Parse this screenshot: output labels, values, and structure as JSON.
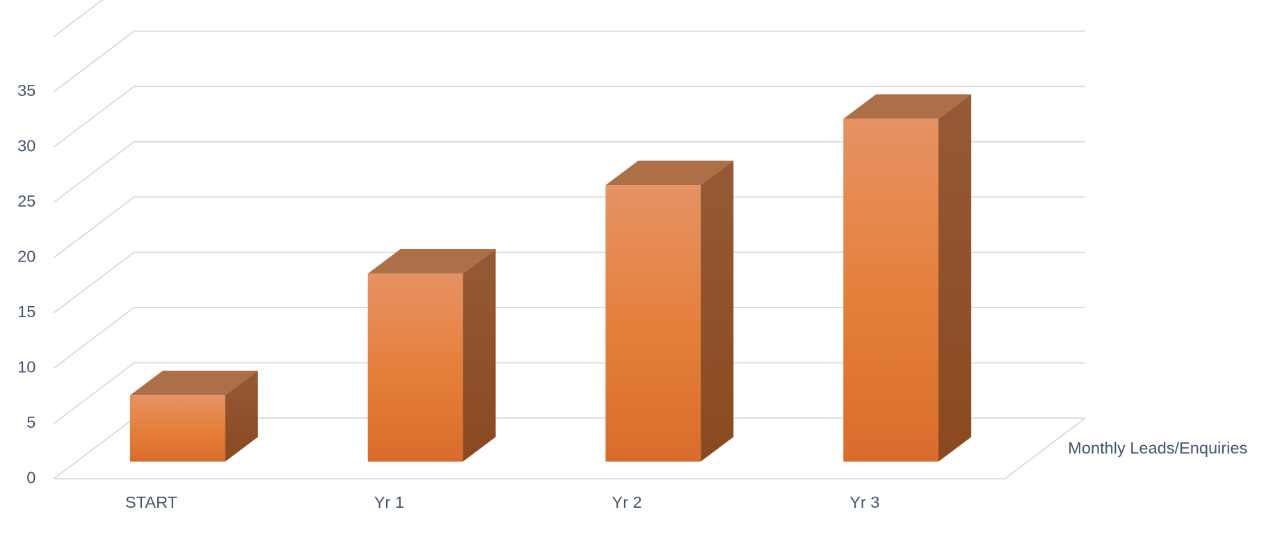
{
  "chart_data": {
    "type": "bar3d",
    "categories": [
      "START",
      "Yr 1",
      "Yr 2",
      "Yr 3"
    ],
    "series": [
      {
        "name": "Monthly Leads/Enquiries",
        "color": "#e07b39",
        "values": [
          6,
          17,
          25,
          31
        ]
      }
    ],
    "ylim": [
      0,
      40
    ],
    "yticks": [
      0,
      5,
      10,
      15,
      20,
      25,
      30,
      35
    ],
    "grid": true
  }
}
